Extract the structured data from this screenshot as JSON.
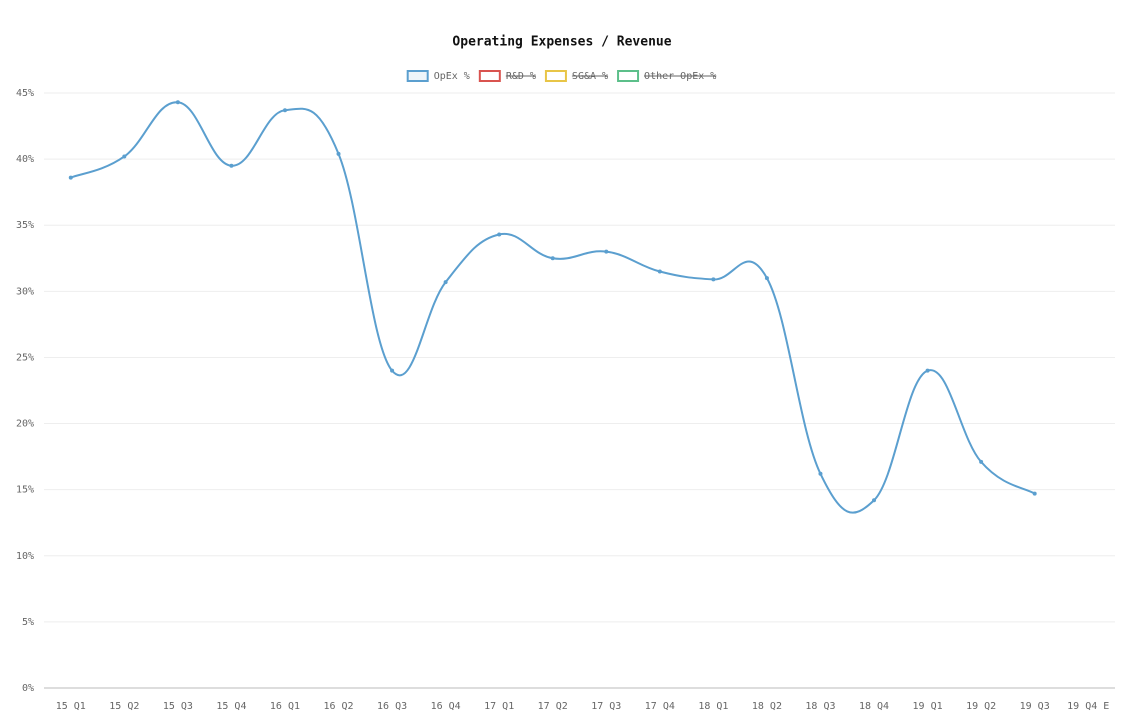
{
  "chart_data": {
    "type": "line",
    "title": "Operating Expenses / Revenue",
    "categories": [
      "15 Q1",
      "15 Q2",
      "15 Q3",
      "15 Q4",
      "16 Q1",
      "16 Q2",
      "16 Q3",
      "16 Q4",
      "17 Q1",
      "17 Q2",
      "17 Q3",
      "17 Q4",
      "18 Q1",
      "18 Q2",
      "18 Q3",
      "18 Q4",
      "19 Q1",
      "19 Q2",
      "19 Q3",
      "19 Q4 E"
    ],
    "series": [
      {
        "name": "OpEx %",
        "color": "#5b9fcf",
        "hidden": false,
        "values": [
          38.6,
          40.2,
          44.3,
          39.5,
          43.7,
          40.4,
          24.0,
          30.7,
          34.3,
          32.5,
          33.0,
          31.5,
          30.9,
          31.0,
          16.2,
          14.2,
          24.0,
          17.1,
          14.7,
          null
        ]
      },
      {
        "name": "R&D %",
        "color": "#d9534f",
        "hidden": true,
        "values": [
          null,
          null,
          null,
          null,
          null,
          null,
          null,
          null,
          null,
          null,
          null,
          null,
          null,
          null,
          null,
          null,
          null,
          null,
          null,
          null
        ]
      },
      {
        "name": "SG&A %",
        "color": "#e8c547",
        "hidden": true,
        "values": [
          null,
          null,
          null,
          null,
          null,
          null,
          null,
          null,
          null,
          null,
          null,
          null,
          null,
          null,
          null,
          null,
          null,
          null,
          null,
          null
        ]
      },
      {
        "name": "Other OpEx %",
        "color": "#5cbf8a",
        "hidden": true,
        "values": [
          null,
          null,
          null,
          null,
          null,
          null,
          null,
          null,
          null,
          null,
          null,
          null,
          null,
          null,
          null,
          null,
          null,
          null,
          null,
          null
        ]
      }
    ],
    "ylim": [
      0,
      45
    ],
    "yticks": [
      {
        "value": 0,
        "label": "0%"
      },
      {
        "value": 5,
        "label": "5%"
      },
      {
        "value": 10,
        "label": "10%"
      },
      {
        "value": 15,
        "label": "15%"
      },
      {
        "value": 20,
        "label": "20%"
      },
      {
        "value": 25,
        "label": "25%"
      },
      {
        "value": 30,
        "label": "30%"
      },
      {
        "value": 35,
        "label": "35%"
      },
      {
        "value": 40,
        "label": "40%"
      },
      {
        "value": 45,
        "label": "45%"
      }
    ],
    "grid": true,
    "legend": "top"
  }
}
